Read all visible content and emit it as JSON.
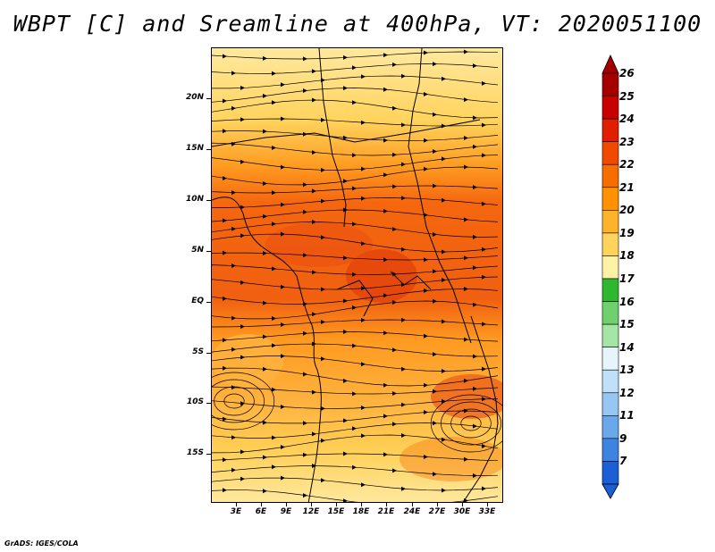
{
  "title": "WBPT [C] and Sreamline at 400hPa, VT: 2020051100",
  "credit": "GrADS: IGES/COLA",
  "map": {
    "lat_range": [
      -20,
      25
    ],
    "lon_range": [
      0,
      35
    ],
    "y_ticks": [
      "20N",
      "15N",
      "10N",
      "5N",
      "EQ",
      "5S",
      "10S",
      "15S"
    ],
    "x_ticks": [
      "3E",
      "6E",
      "9E",
      "12E",
      "15E",
      "18E",
      "21E",
      "24E",
      "27E",
      "30E",
      "33E"
    ]
  },
  "colorbar": {
    "labels": [
      "26",
      "25",
      "24",
      "23",
      "22",
      "21",
      "20",
      "19",
      "18",
      "17",
      "16",
      "15",
      "14",
      "13",
      "12",
      "11",
      "9",
      "7"
    ],
    "colors": [
      "#a50000",
      "#c80000",
      "#e01e00",
      "#ef4a00",
      "#f76e00",
      "#ff9200",
      "#ffb32d",
      "#ffd35c",
      "#fff2a5",
      "#2fb82f",
      "#6ed16e",
      "#a5e5a5",
      "#e5f5f9",
      "#bfe0f8",
      "#96c6f1",
      "#6aa8ea",
      "#3d84e0",
      "#1a5fd6"
    ]
  }
}
